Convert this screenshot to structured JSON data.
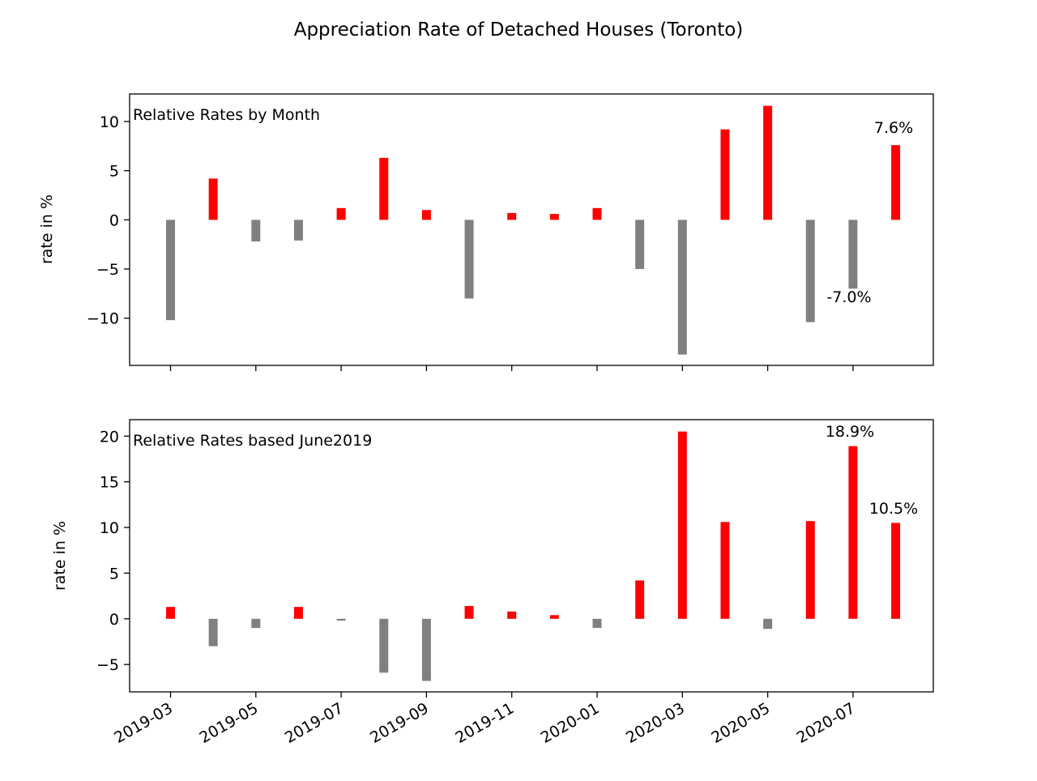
{
  "figure_title": "Appreciation Rate of Detached Houses (Toronto)",
  "colors": {
    "positive": "#ff0000",
    "negative": "#808080",
    "axis": "#000000"
  },
  "x_tick_labels": [
    "2019-03",
    "2019-05",
    "2019-07",
    "2019-09",
    "2019-11",
    "2020-01",
    "2020-03",
    "2020-05",
    "2020-07"
  ],
  "chart_data": [
    {
      "type": "bar",
      "title": "Relative Rates by Month",
      "ylabel": "rate in %",
      "xlabel": "",
      "categories": [
        "2019-03",
        "2019-04",
        "2019-05",
        "2019-06",
        "2019-07",
        "2019-08",
        "2019-09",
        "2019-10",
        "2019-11",
        "2019-12",
        "2020-01",
        "2020-02",
        "2020-03",
        "2020-04",
        "2020-05",
        "2020-06",
        "2020-07",
        "2020-08"
      ],
      "values": [
        -10.2,
        4.2,
        -2.2,
        -2.1,
        1.2,
        6.3,
        1.0,
        -8.0,
        0.7,
        0.6,
        1.2,
        -5.0,
        -13.7,
        9.2,
        11.6,
        -10.4,
        -7.0,
        7.6
      ],
      "ylim": [
        -14.8,
        12.8
      ],
      "yticks": [
        -10,
        -5,
        0,
        5,
        10
      ],
      "annotations": [
        "7.6%",
        "-7.0%"
      ]
    },
    {
      "type": "bar",
      "title": "Relative Rates based June2019",
      "ylabel": "rate in %",
      "xlabel": "",
      "categories": [
        "2019-03",
        "2019-04",
        "2019-05",
        "2019-06",
        "2019-07",
        "2019-08",
        "2019-09",
        "2019-10",
        "2019-11",
        "2019-12",
        "2020-01",
        "2020-02",
        "2020-03",
        "2020-04",
        "2020-05",
        "2020-06",
        "2020-07",
        "2020-08"
      ],
      "values": [
        1.3,
        -3.0,
        -1.0,
        1.3,
        -0.2,
        -5.9,
        -6.8,
        1.4,
        0.8,
        0.4,
        -1.0,
        4.2,
        20.5,
        10.6,
        -1.1,
        10.7,
        18.9,
        10.5
      ],
      "ylim": [
        -8.0,
        21.8
      ],
      "yticks": [
        -5,
        0,
        5,
        10,
        15,
        20
      ],
      "annotations": [
        "18.9%",
        "10.5%"
      ]
    }
  ]
}
